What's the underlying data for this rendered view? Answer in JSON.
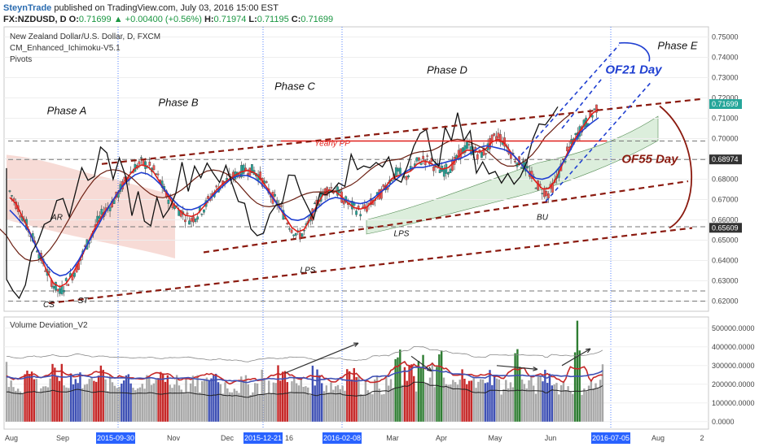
{
  "header": {
    "publisher": "SteynTrade",
    "published_text": " published on TradingView.com, July 03, 2016 15:00 EST",
    "symbol": "FX:NZDUSD, D",
    "open_label": "O:",
    "open": "0.71699",
    "change": "▲ +0.00400 (+0.56%)",
    "high_label": "H:",
    "high": "0.71974",
    "low_label": "L:",
    "low": "0.71195",
    "close_label": "C:",
    "close": "0.71699"
  },
  "overlay": {
    "title": "New Zealand Dollar/U.S. Dollar, D, FXCM",
    "indicator1": "CM_Enhanced_Ichimoku-V5.1",
    "indicator2": "Pivots",
    "volume_title": "Volume Deviation_V2"
  },
  "colors": {
    "up": "#26a69a",
    "down": "#ef5350",
    "price_line": "#111111",
    "ichimoku_red": "#e0201b",
    "ichimoku_blue": "#1f3fd1",
    "cloud_pink": "#f4cfc8",
    "cloud_green": "#d6ecd6",
    "trend_dark_red": "#8b1a0f",
    "channel_blue": "#1f3fd1",
    "axis_highlight": "#2962ff",
    "vol_gray": "#a8a8a8",
    "vol_red": "#c62828",
    "vol_blue": "#3f51b5",
    "vol_green": "#2e7d32"
  },
  "chart_data": {
    "type": "line",
    "title": "New Zealand Dollar/U.S. Dollar, D, FXCM",
    "price_axis": {
      "ticks": [
        "0.75000",
        "0.74000",
        "0.73000",
        "0.72000",
        "0.71000",
        "0.70000",
        "0.69000",
        "0.68000",
        "0.67000",
        "0.66000",
        "0.65000",
        "0.64000",
        "0.63000",
        "0.62000"
      ],
      "ylim": [
        0.615,
        0.755
      ],
      "tags": [
        {
          "label": "0.71699",
          "value": 0.71699,
          "color": "#26a69a"
        },
        {
          "label": "0.68974",
          "value": 0.68974,
          "color": "#333333"
        },
        {
          "label": "0.65609",
          "value": 0.65609,
          "color": "#333333"
        }
      ]
    },
    "volume_axis": {
      "ticks": [
        "500000.0000",
        "400000.0000",
        "300000.0000",
        "200000.0000",
        "100000.0000",
        "0.0000"
      ],
      "ylim": [
        -40000,
        560000
      ]
    },
    "time_axis": {
      "labels": [
        "Aug",
        "Sep",
        "2015-09-30",
        "Nov",
        "Dec",
        "2015-12-21",
        "16",
        "2016-02-08",
        "Mar",
        "Apr",
        "May",
        "Jun",
        "2016-07-05",
        "Aug",
        "2"
      ],
      "highlighted": [
        "2015-09-30",
        "2015-12-21",
        "2016-02-08",
        "2016-07-05"
      ]
    },
    "pivot_levels": [
      0.6988,
      0.6897,
      0.6566,
      0.625,
      0.62
    ],
    "series": [
      {
        "values": [
          0.674,
          0.668,
          0.662,
          0.655,
          0.649,
          0.641,
          0.634,
          0.628,
          0.624,
          0.629,
          0.633,
          0.638,
          0.646,
          0.652,
          0.659,
          0.664,
          0.667,
          0.671,
          0.677,
          0.682,
          0.686,
          0.688,
          0.687,
          0.684,
          0.679,
          0.672,
          0.668,
          0.665,
          0.662,
          0.66,
          0.663,
          0.666,
          0.671,
          0.675,
          0.678,
          0.68,
          0.682,
          0.684,
          0.685,
          0.684,
          0.681,
          0.676,
          0.671,
          0.667,
          0.661,
          0.656,
          0.652,
          0.654,
          0.66,
          0.668,
          0.673,
          0.676,
          0.675,
          0.671,
          0.668,
          0.666,
          0.664,
          0.666,
          0.669,
          0.672,
          0.676,
          0.681,
          0.684,
          0.68,
          0.684,
          0.688,
          0.69,
          0.689,
          0.686,
          0.684,
          0.685,
          0.688,
          0.693,
          0.696,
          0.694,
          0.692,
          0.694,
          0.699,
          0.702,
          0.698,
          0.693,
          0.689,
          0.687,
          0.683,
          0.678,
          0.675,
          0.673,
          0.678,
          0.686,
          0.693,
          0.699,
          0.704,
          0.708,
          0.712,
          0.717
        ]
      }
    ],
    "annotations": [
      {
        "text": "Phase A",
        "x": 82,
        "y": 0.712
      },
      {
        "text": "Phase B",
        "x": 219,
        "y": 0.716
      },
      {
        "text": "Phase C",
        "x": 362,
        "y": 0.724
      },
      {
        "text": "Phase D",
        "x": 549,
        "y": 0.732
      },
      {
        "text": "Phase E",
        "x": 832,
        "y": 0.744
      },
      {
        "text": "OF21 Day",
        "x": 778,
        "y": 0.732
      },
      {
        "text": "OF55 Day",
        "x": 798,
        "y": 0.688
      },
      {
        "text": "Yearly PP",
        "x": 408,
        "y": 0.6965
      },
      {
        "text": "AR",
        "x": 70,
        "y": 0.66
      },
      {
        "text": "ST",
        "x": 102,
        "y": 0.619
      },
      {
        "text": "CS",
        "x": 60,
        "y": 0.617
      },
      {
        "text": "LPS",
        "x": 378,
        "y": 0.634
      },
      {
        "text": "LPS",
        "x": 493,
        "y": 0.652
      },
      {
        "text": "BU",
        "x": 666,
        "y": 0.66
      }
    ]
  }
}
